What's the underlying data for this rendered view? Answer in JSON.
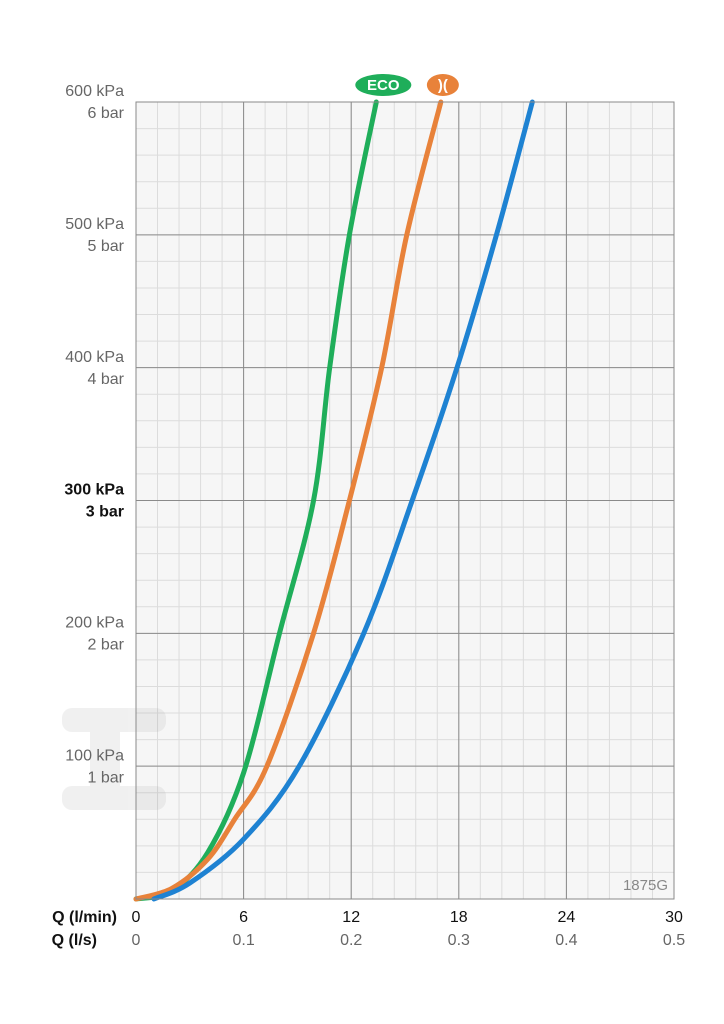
{
  "chart_data": {
    "type": "line",
    "xlabel": "Q (l/min)",
    "x2label": "Q (l/s)",
    "xlim": [
      0,
      30
    ],
    "xticks": [
      0,
      6,
      12,
      18,
      24,
      30
    ],
    "x2lim": [
      0,
      0.5
    ],
    "x2ticks": [
      0,
      0.1,
      0.2,
      0.3,
      0.4,
      0.5
    ],
    "ylim": [
      0,
      600
    ],
    "yticks": [
      {
        "value": 100,
        "label": "100 kPa"
      },
      {
        "value": 200,
        "label": "200 kPa"
      },
      {
        "value": 300,
        "label": "300 kPa"
      },
      {
        "value": 400,
        "label": "400 kPa"
      },
      {
        "value": 500,
        "label": "500 kPa"
      },
      {
        "value": 600,
        "label": "600 kPa"
      }
    ],
    "y2lim": [
      0,
      6
    ],
    "y2ticks": [
      {
        "value": 1,
        "label": "1 bar"
      },
      {
        "value": 2,
        "label": "2 bar"
      },
      {
        "value": 3,
        "label": "3 bar"
      },
      {
        "value": 4,
        "label": "4 bar"
      },
      {
        "value": 5,
        "label": "5 bar"
      },
      {
        "value": 6,
        "label": "6 bar"
      }
    ],
    "highlight_tick": 300,
    "grid": true,
    "annotation": "1875G",
    "series": [
      {
        "name": "ECO",
        "color": "#1fae5a",
        "x": [
          0,
          2,
          4,
          6,
          8,
          9.9,
          10.8,
          11.9,
          13.4
        ],
        "values": [
          0,
          6,
          35,
          95,
          200,
          300,
          400,
          500,
          600
        ]
      },
      {
        "name": ")(",
        "color": "#e8823a",
        "x": [
          0,
          2,
          4,
          5.5,
          7.3,
          9.9,
          11.9,
          13.7,
          15.1,
          17
        ],
        "values": [
          0,
          8,
          30,
          60,
          100,
          200,
          300,
          400,
          500,
          600
        ]
      },
      {
        "color": "#1e82d2",
        "x": [
          1,
          3,
          6,
          9.1,
          12.7,
          15.4,
          17.9,
          20.1,
          22.1
        ],
        "values": [
          0,
          12,
          45,
          100,
          200,
          300,
          400,
          500,
          600
        ]
      }
    ]
  }
}
